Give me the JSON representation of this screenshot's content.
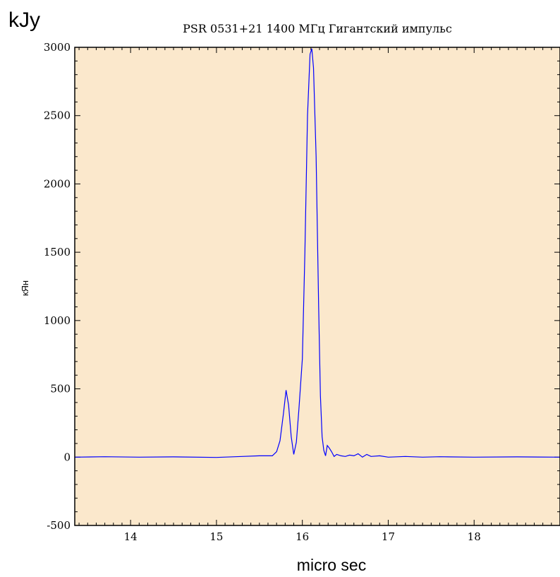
{
  "chart_data": {
    "type": "line",
    "title": "PSR 0531+21 1400 МГц Гигантский импульс",
    "corner_unit": "kJy",
    "ylabel": "кЯн",
    "xlabel": "micro sec",
    "xlim": [
      13.35,
      19.0
    ],
    "ylim": [
      -500,
      3000
    ],
    "xticks": [
      14,
      15,
      16,
      17,
      18
    ],
    "xtick_labels": [
      "14",
      "15",
      "16",
      "17",
      "18"
    ],
    "yticks": [
      -500,
      0,
      500,
      1000,
      1500,
      2000,
      2500,
      3000
    ],
    "ytick_labels": [
      "-500",
      "0",
      "500",
      "1000",
      "1500",
      "2000",
      "2500",
      "3000"
    ],
    "grid": false,
    "plot_background": "#fbe8cc",
    "line_color": "#0000ff",
    "series": [
      {
        "x": [
          13.35,
          13.7,
          14.1,
          14.5,
          15.0,
          15.3,
          15.5,
          15.65,
          15.7,
          15.74,
          15.78,
          15.81,
          15.84,
          15.87,
          15.9,
          15.93,
          15.96,
          16.0,
          16.03,
          16.06,
          16.09,
          16.11,
          16.13,
          16.16,
          16.19,
          16.21,
          16.23,
          16.25,
          16.27,
          16.29,
          16.31,
          16.34,
          16.37,
          16.4,
          16.45,
          16.5,
          16.55,
          16.6,
          16.65,
          16.7,
          16.75,
          16.8,
          16.9,
          17.0,
          17.2,
          17.4,
          17.6,
          18.0,
          18.5,
          19.0
        ],
        "y": [
          0,
          3,
          0,
          2,
          -2,
          5,
          10,
          10,
          40,
          120,
          320,
          490,
          380,
          150,
          20,
          110,
          350,
          720,
          1500,
          2500,
          2950,
          2990,
          2850,
          2200,
          1100,
          450,
          150,
          50,
          10,
          85,
          70,
          40,
          5,
          20,
          10,
          5,
          15,
          10,
          25,
          0,
          20,
          5,
          10,
          0,
          5,
          0,
          3,
          0,
          2,
          0
        ]
      }
    ]
  }
}
